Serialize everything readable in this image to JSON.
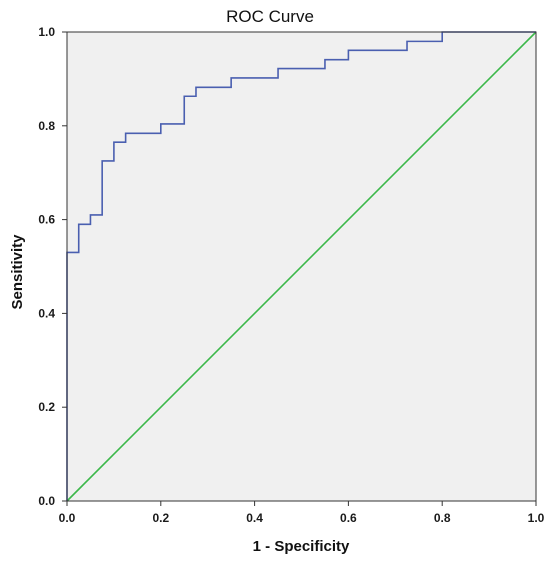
{
  "chart_data": {
    "type": "line",
    "title": "ROC Curve",
    "xlabel": "1 - Specificity",
    "ylabel": "Sensitivity",
    "xlim": [
      0,
      1
    ],
    "ylim": [
      0,
      1
    ],
    "x_ticks": [
      "0.0",
      "0.2",
      "0.4",
      "0.6",
      "0.8",
      "1.0"
    ],
    "y_ticks": [
      "0.0",
      "0.2",
      "0.4",
      "0.6",
      "0.8",
      "1.0"
    ],
    "grid": false,
    "legend": "none",
    "background_color": "#f0f0f0",
    "series": [
      {
        "line_type": "step",
        "color": "#4a5fb0",
        "points": [
          [
            0.0,
            0.0
          ],
          [
            0.0,
            0.53
          ],
          [
            0.025,
            0.53
          ],
          [
            0.025,
            0.59
          ],
          [
            0.05,
            0.59
          ],
          [
            0.05,
            0.61
          ],
          [
            0.075,
            0.61
          ],
          [
            0.075,
            0.725
          ],
          [
            0.1,
            0.725
          ],
          [
            0.1,
            0.765
          ],
          [
            0.125,
            0.765
          ],
          [
            0.125,
            0.784
          ],
          [
            0.2,
            0.784
          ],
          [
            0.2,
            0.804
          ],
          [
            0.25,
            0.804
          ],
          [
            0.25,
            0.863
          ],
          [
            0.275,
            0.863
          ],
          [
            0.275,
            0.882
          ],
          [
            0.35,
            0.882
          ],
          [
            0.35,
            0.902
          ],
          [
            0.45,
            0.902
          ],
          [
            0.45,
            0.922
          ],
          [
            0.55,
            0.922
          ],
          [
            0.55,
            0.941
          ],
          [
            0.6,
            0.941
          ],
          [
            0.6,
            0.961
          ],
          [
            0.725,
            0.961
          ],
          [
            0.725,
            0.98
          ],
          [
            0.8,
            0.98
          ],
          [
            0.8,
            1.0
          ],
          [
            1.0,
            1.0
          ]
        ]
      },
      {
        "line_type": "reference",
        "color": "#3cb84a",
        "points": [
          [
            0,
            0
          ],
          [
            1,
            1
          ]
        ]
      }
    ]
  }
}
